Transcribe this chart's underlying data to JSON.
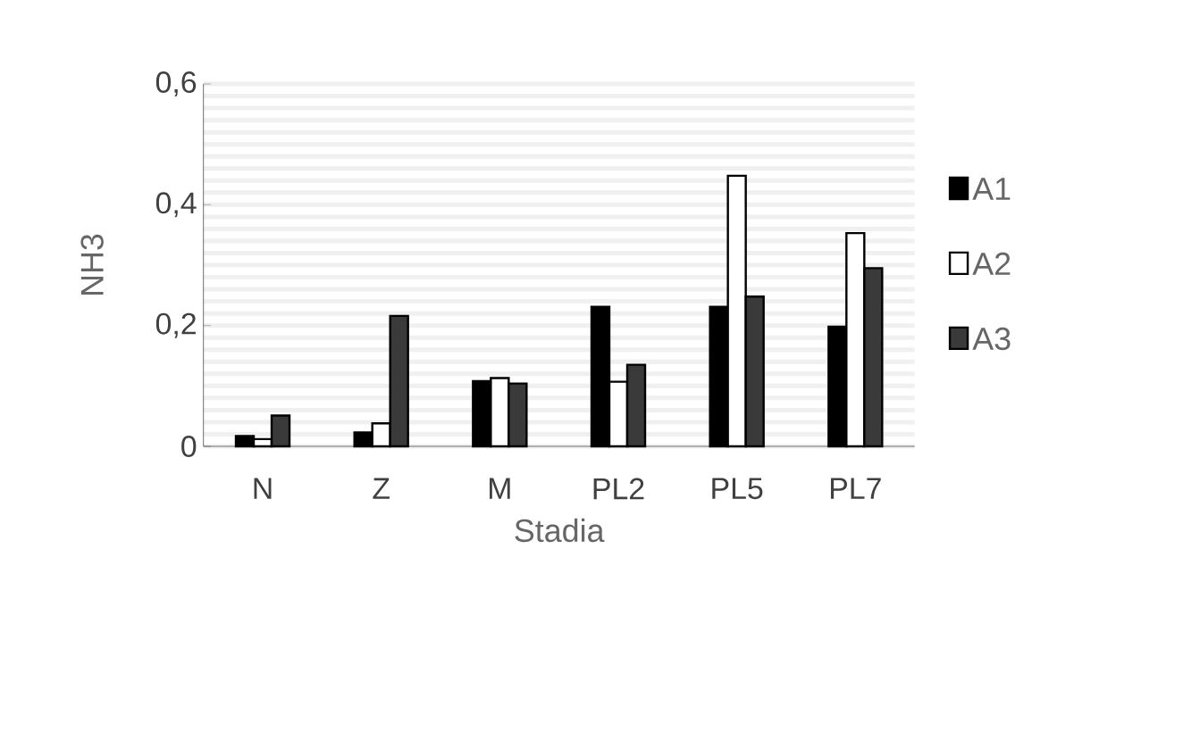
{
  "chart_data": {
    "type": "bar",
    "xlabel": "Stadia",
    "ylabel": "NH3",
    "categories": [
      "N",
      "Z",
      "M",
      "PL2",
      "PL5",
      "PL7"
    ],
    "series": [
      {
        "name": "A1",
        "color": "#000000",
        "values": [
          0.017,
          0.023,
          0.108,
          0.231,
          0.231,
          0.198
        ]
      },
      {
        "name": "A2",
        "color": "#ffffff",
        "values": [
          0.012,
          0.038,
          0.113,
          0.107,
          0.448,
          0.353
        ]
      },
      {
        "name": "A3",
        "color": "#3a3a3a",
        "values": [
          0.051,
          0.216,
          0.104,
          0.135,
          0.248,
          0.295
        ]
      }
    ],
    "ylim": [
      0,
      0.6
    ],
    "yticks": [
      {
        "value": 0,
        "label": "0"
      },
      {
        "value": 0.2,
        "label": "0,2"
      },
      {
        "value": 0.4,
        "label": "0,4"
      },
      {
        "value": 0.6,
        "label": "0,6"
      }
    ],
    "grid": "y",
    "legend": "right"
  }
}
